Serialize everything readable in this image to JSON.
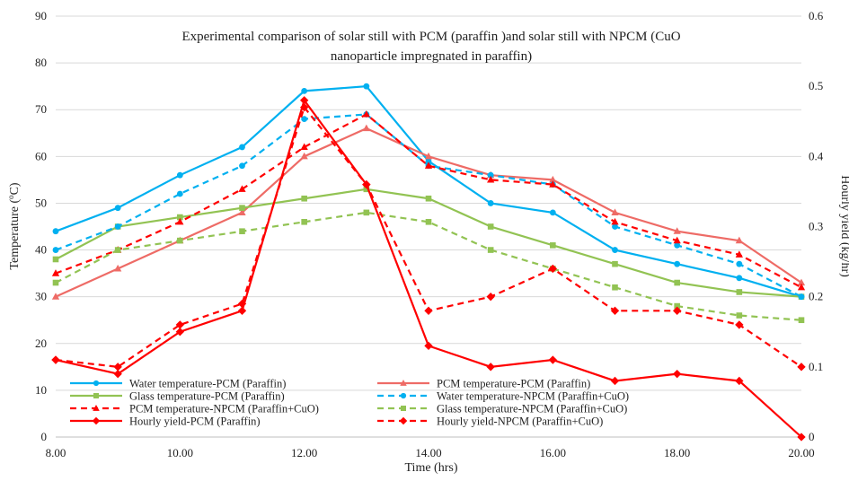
{
  "chart_data": {
    "type": "line",
    "title": "Experimental comparison of solar still with PCM (paraffin )and solar still with NPCM (CuO nanoparticle impregnated in paraffin)",
    "title_lines": [
      "Experimental comparison  of solar still with PCM (paraffin )and solar still with NPCM (CuO",
      "nanoparticle impregnated  in paraffin)"
    ],
    "xlabel": "Time (hrs)",
    "ylabel_left": "Temperature (°C)",
    "ylabel_right": "Hourly yield (kg/hr)",
    "xlim": [
      8,
      20
    ],
    "ylim_left": [
      0,
      90
    ],
    "ylim_right": [
      0,
      0.6
    ],
    "x_ticks": [
      "8.00",
      "10.00",
      "12.00",
      "14.00",
      "16.00",
      "18.00",
      "20.00"
    ],
    "y_ticks_left": [
      "0",
      "10",
      "20",
      "30",
      "40",
      "50",
      "60",
      "70",
      "80",
      "90"
    ],
    "y_ticks_right": [
      "0",
      "0.1",
      "0.2",
      "0.3",
      "0.4",
      "0.5",
      "0.6"
    ],
    "grid": true,
    "legend_position": "bottom-left",
    "x": [
      8,
      9,
      10,
      11,
      12,
      13,
      14,
      15,
      16,
      17,
      18,
      19,
      20
    ],
    "series": [
      {
        "name": "Water temperature-PCM (Paraffin)",
        "axis": "left",
        "color": "#00b0f0",
        "dash": "solid",
        "marker": "circle",
        "values": [
          44,
          49,
          56,
          62,
          74,
          75,
          59,
          50,
          48,
          40,
          37,
          34,
          30
        ]
      },
      {
        "name": "PCM temperature-PCM (Paraffin)",
        "axis": "left",
        "color": "#ee6b66",
        "dash": "solid",
        "marker": "triangle",
        "values": [
          30,
          36,
          42,
          48,
          60,
          66,
          60,
          56,
          55,
          48,
          44,
          42,
          33
        ]
      },
      {
        "name": "Glass temperature-PCM (Paraffin)",
        "axis": "left",
        "color": "#92c353",
        "dash": "solid",
        "marker": "square",
        "values": [
          38,
          45,
          47,
          49,
          51,
          53,
          51,
          45,
          41,
          37,
          33,
          31,
          30
        ]
      },
      {
        "name": "Water temperature-NPCM (Paraffin+CuO)",
        "axis": "left",
        "color": "#00b0f0",
        "dash": "dashed",
        "marker": "circle",
        "values": [
          40,
          45,
          52,
          58,
          68,
          69,
          58,
          56,
          54,
          45,
          41,
          37,
          30
        ]
      },
      {
        "name": "PCM temperature-NPCM (Paraffin+CuO)",
        "axis": "left",
        "color": "#ff0000",
        "dash": "dashed",
        "marker": "triangle",
        "values": [
          35,
          40,
          46,
          53,
          62,
          69,
          58,
          55,
          54,
          46,
          42,
          39,
          32
        ]
      },
      {
        "name": "Glass temperature-NPCM (Paraffin+CuO)",
        "axis": "left",
        "color": "#92c353",
        "dash": "dashed",
        "marker": "square",
        "values": [
          33,
          40,
          42,
          44,
          46,
          48,
          46,
          40,
          36,
          32,
          28,
          26,
          25
        ]
      },
      {
        "name": "Hourly yield-PCM (Paraffin)",
        "axis": "right",
        "color": "#ff0000",
        "dash": "solid",
        "marker": "diamond",
        "values": [
          0.11,
          0.09,
          0.15,
          0.18,
          0.48,
          0.36,
          0.13,
          0.1,
          0.11,
          0.08,
          0.09,
          0.08,
          0.0
        ]
      },
      {
        "name": "Hourly yield-NPCM (Paraffin+CuO)",
        "axis": "right",
        "color": "#ff0000",
        "dash": "dashed",
        "marker": "diamond",
        "values": [
          0.11,
          0.1,
          0.16,
          0.19,
          0.47,
          0.36,
          0.18,
          0.2,
          0.24,
          0.18,
          0.18,
          0.16,
          0.1
        ]
      }
    ]
  }
}
